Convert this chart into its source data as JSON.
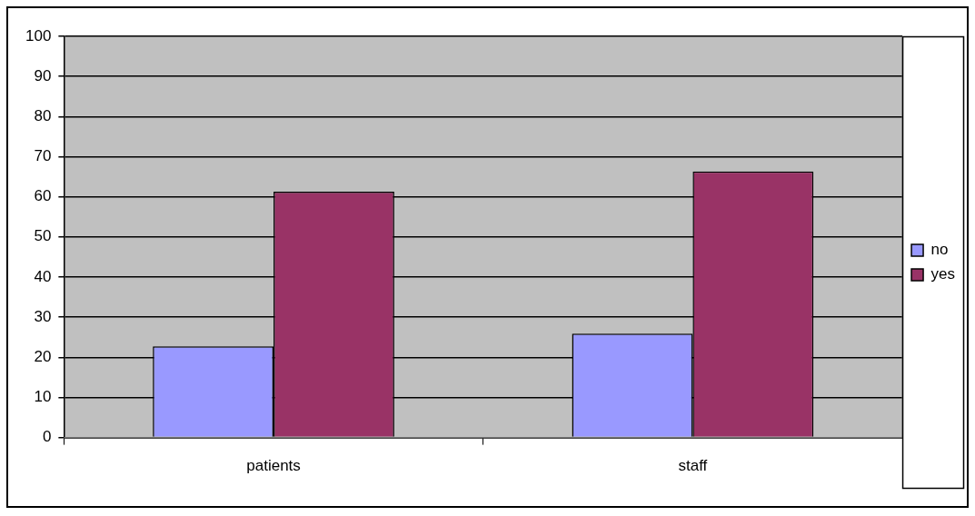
{
  "chart_data": {
    "type": "bar",
    "categories": [
      "patients",
      "staff"
    ],
    "series": [
      {
        "name": "no",
        "color": "#9999ff",
        "values": [
          22.7,
          25.9
        ]
      },
      {
        "name": "yes",
        "color": "#993366",
        "values": [
          61.3,
          66.3
        ]
      }
    ],
    "ylim": [
      0,
      100
    ],
    "yticks": [
      0,
      10,
      20,
      30,
      40,
      50,
      60,
      70,
      80,
      90,
      100
    ],
    "grid": "y",
    "legend": "right"
  }
}
